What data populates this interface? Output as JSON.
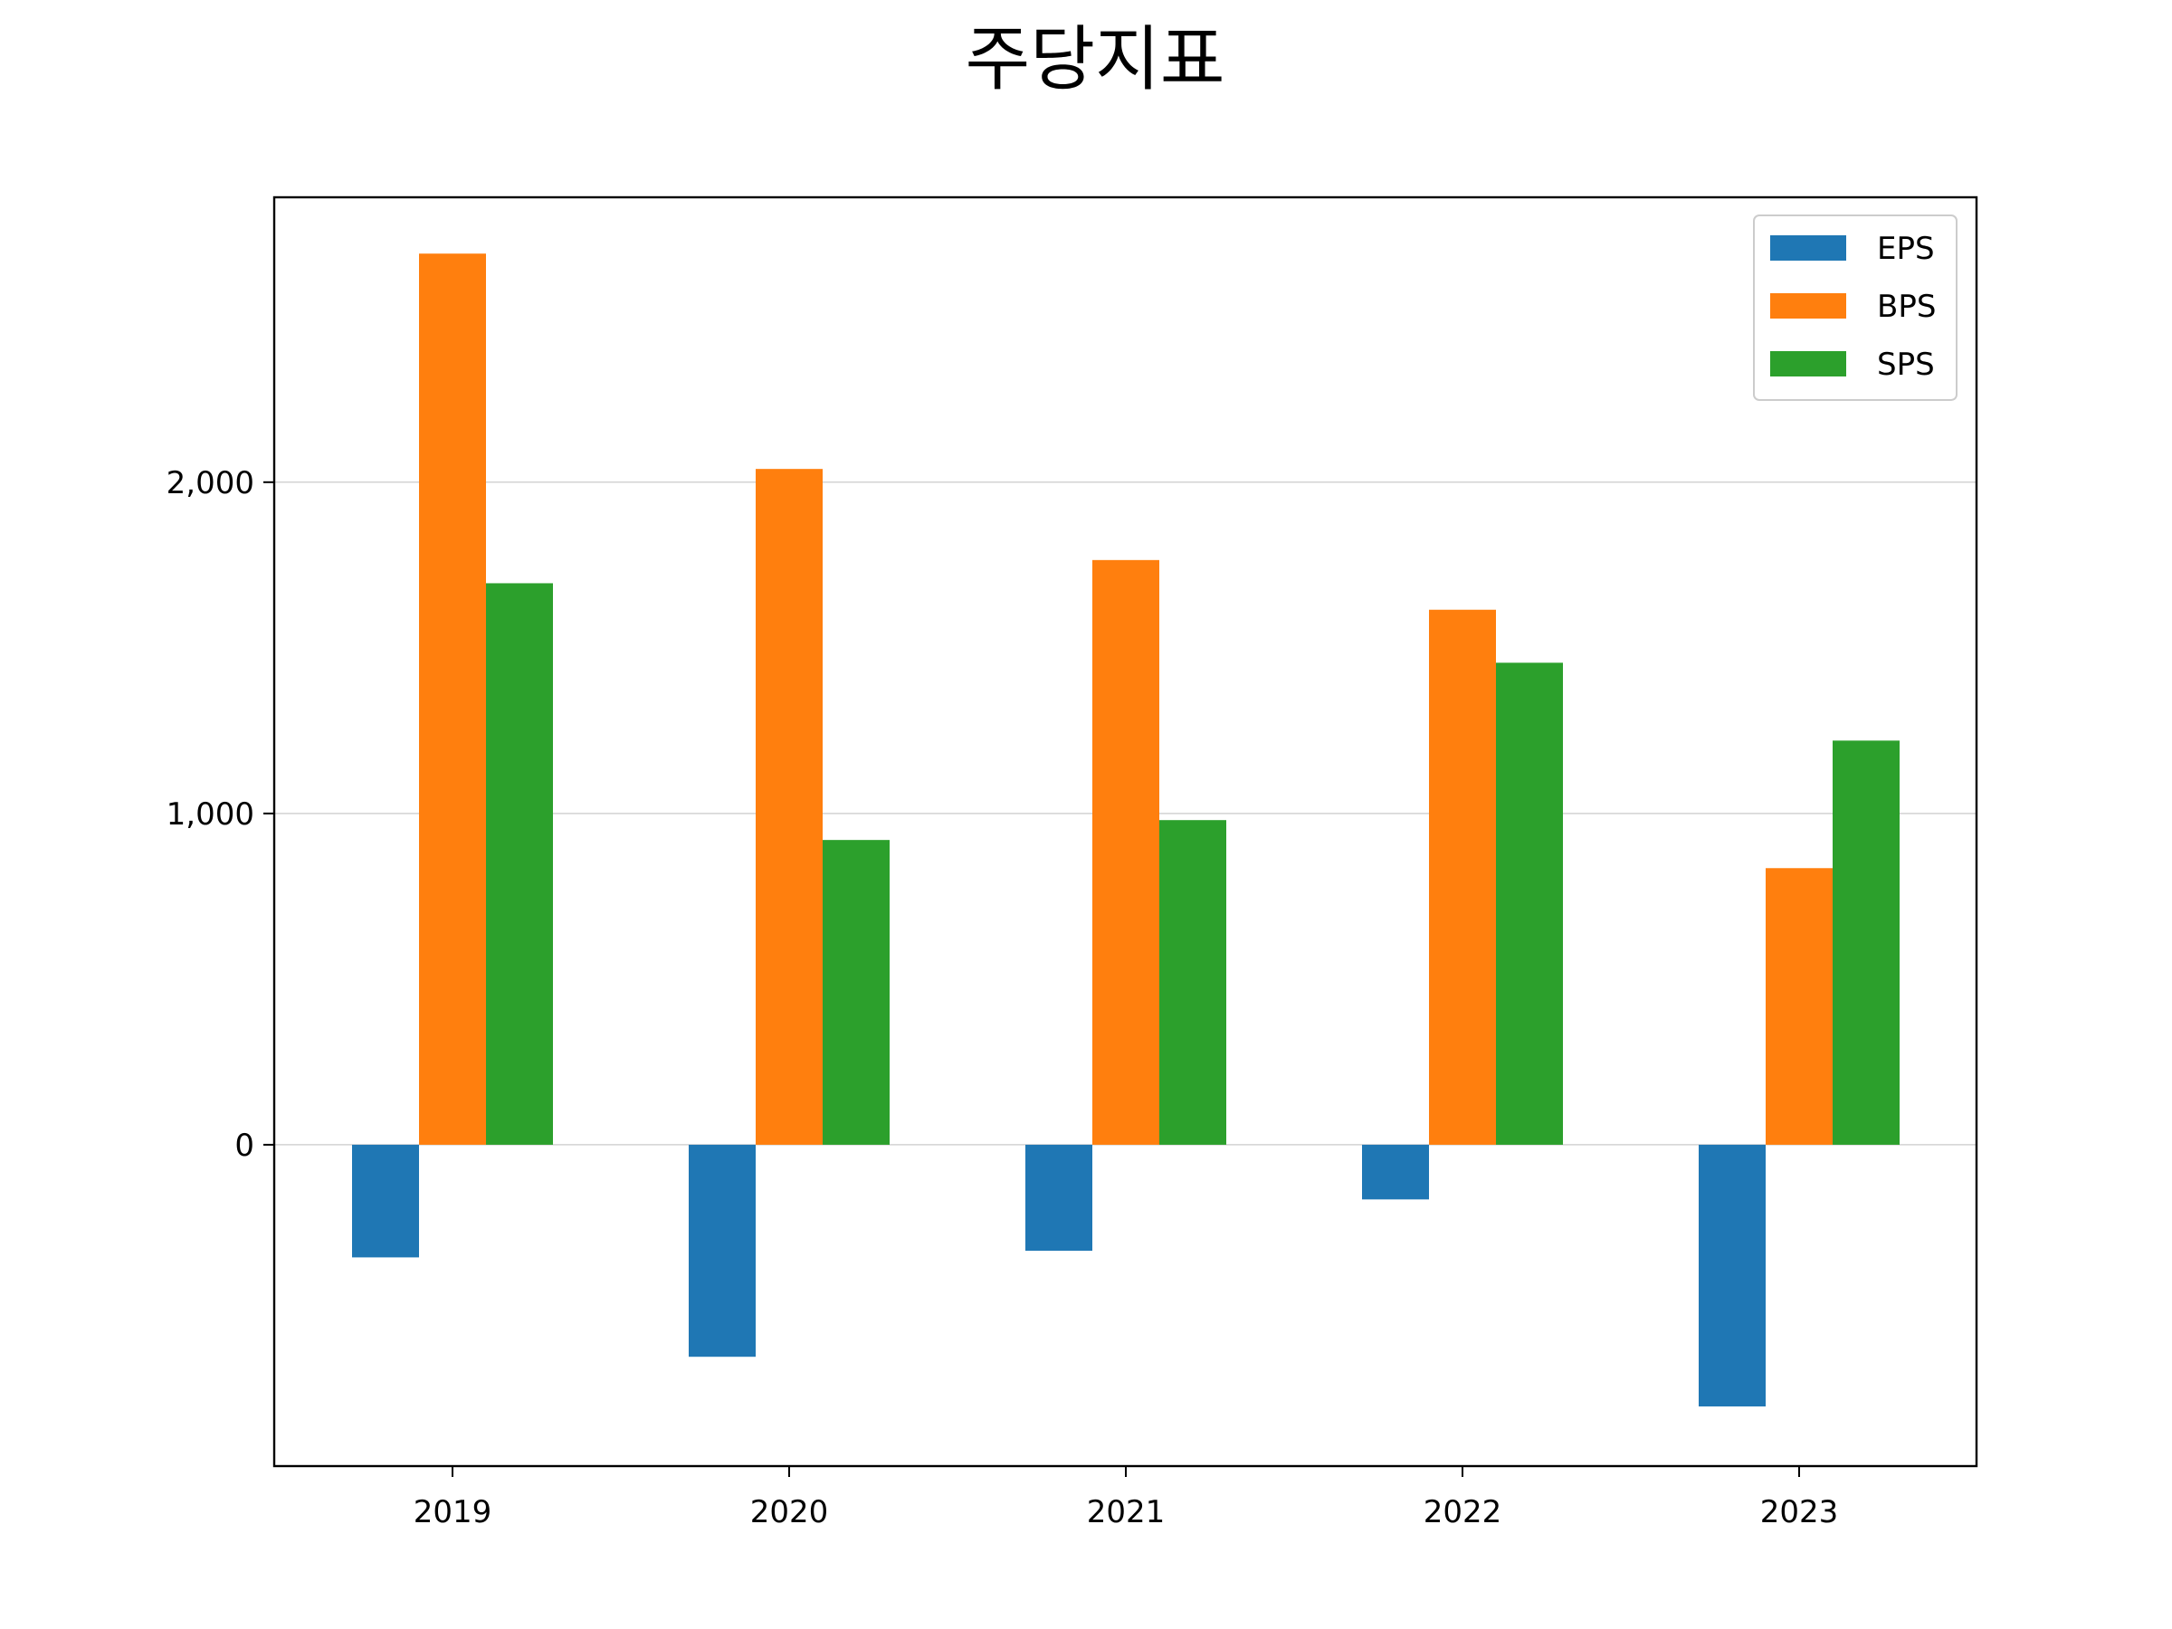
{
  "chart_data": {
    "type": "bar",
    "title": "주당지표",
    "xlabel": "",
    "ylabel": "",
    "categories": [
      "2019",
      "2020",
      "2021",
      "2022",
      "2023"
    ],
    "series": [
      {
        "name": "EPS",
        "color": "#1f77b4",
        "values": [
          -340,
          -640,
          -320,
          -165,
          -790
        ]
      },
      {
        "name": "BPS",
        "color": "#ff7f0e",
        "values": [
          2690,
          2040,
          1765,
          1615,
          835
        ]
      },
      {
        "name": "SPS",
        "color": "#2ca02c",
        "values": [
          1695,
          920,
          980,
          1455,
          1220
        ]
      }
    ],
    "yticks": [
      0,
      1000,
      2000
    ],
    "ytick_labels": [
      "0",
      "1,000",
      "2,000"
    ],
    "ylim": [
      -970,
      2860
    ],
    "grid": "y",
    "legend_position": "top-right"
  }
}
